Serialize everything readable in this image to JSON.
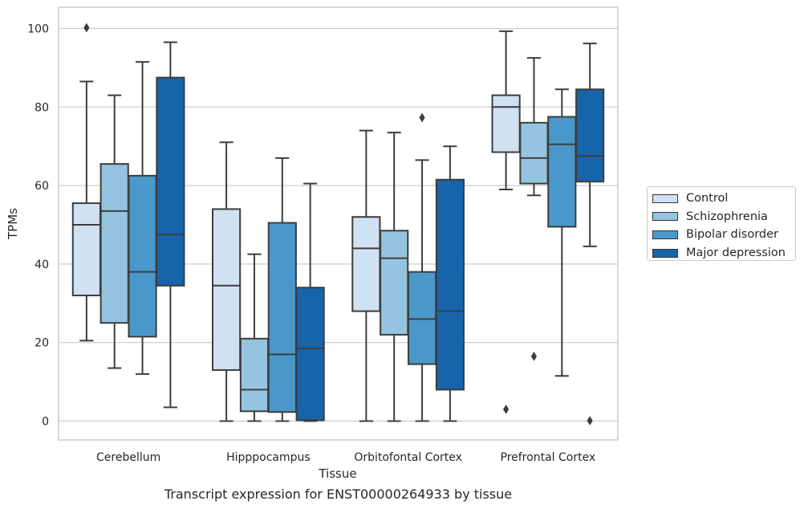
{
  "chart_data": {
    "type": "box",
    "xlabel": "Tissue",
    "ylabel": "TPMs",
    "caption": "Transcript expression for ENST00000264933 by tissue",
    "ylim": [
      -5,
      105
    ],
    "yticks": [
      0,
      20,
      40,
      60,
      80,
      100
    ],
    "grid": "horizontal",
    "legend_position": "right",
    "categories": [
      "Cerebellum",
      "Hipppocampus",
      "Orbitofontal Cortex",
      "Prefrontal Cortex"
    ],
    "series": [
      {
        "name": "Control",
        "color": "#d0e1f2",
        "boxes": [
          {
            "whislo": 20.5,
            "q1": 32,
            "median": 50,
            "q3": 55.5,
            "whishi": 86.5,
            "fliers": [
              100.2
            ]
          },
          {
            "whislo": 0,
            "q1": 13,
            "median": 34.5,
            "q3": 54,
            "whishi": 71,
            "fliers": []
          },
          {
            "whislo": 0,
            "q1": 28,
            "median": 44,
            "q3": 52,
            "whishi": 74,
            "fliers": []
          },
          {
            "whislo": 59,
            "q1": 68.5,
            "median": 80,
            "q3": 83,
            "whishi": 99.3,
            "fliers": [
              3
            ]
          }
        ]
      },
      {
        "name": "Schizophrenia",
        "color": "#94c4df",
        "boxes": [
          {
            "whislo": 13.5,
            "q1": 25,
            "median": 53.5,
            "q3": 65.5,
            "whishi": 83,
            "fliers": []
          },
          {
            "whislo": 0,
            "q1": 2.5,
            "median": 8,
            "q3": 21,
            "whishi": 42.5,
            "fliers": []
          },
          {
            "whislo": 0,
            "q1": 22,
            "median": 41.5,
            "q3": 48.5,
            "whishi": 73.5,
            "fliers": []
          },
          {
            "whislo": 57.5,
            "q1": 60.5,
            "median": 67,
            "q3": 76,
            "whishi": 92.5,
            "fliers": [
              16.5
            ]
          }
        ]
      },
      {
        "name": "Bipolar disorder",
        "color": "#4a98c9",
        "boxes": [
          {
            "whislo": 12,
            "q1": 21.5,
            "median": 38,
            "q3": 62.5,
            "whishi": 91.5,
            "fliers": []
          },
          {
            "whislo": 0,
            "q1": 2.3,
            "median": 17,
            "q3": 50.5,
            "whishi": 67,
            "fliers": []
          },
          {
            "whislo": 0,
            "q1": 14.5,
            "median": 26,
            "q3": 38,
            "whishi": 66.5,
            "fliers": [
              77.3
            ]
          },
          {
            "whislo": 11.5,
            "q1": 49.5,
            "median": 70.5,
            "q3": 77.5,
            "whishi": 84.5,
            "fliers": []
          }
        ]
      },
      {
        "name": "Major depression",
        "color": "#1764ab",
        "boxes": [
          {
            "whislo": 3.5,
            "q1": 34.5,
            "median": 47.5,
            "q3": 87.5,
            "whishi": 96.5,
            "fliers": []
          },
          {
            "whislo": 0,
            "q1": 0.2,
            "median": 18.5,
            "q3": 34,
            "whishi": 60.5,
            "fliers": []
          },
          {
            "whislo": 0,
            "q1": 8,
            "median": 28,
            "q3": 61.5,
            "whishi": 70,
            "fliers": []
          },
          {
            "whislo": 44.5,
            "q1": 61,
            "median": 67.5,
            "q3": 84.5,
            "whishi": 96.2,
            "fliers": [
              0.1
            ]
          }
        ]
      }
    ]
  }
}
